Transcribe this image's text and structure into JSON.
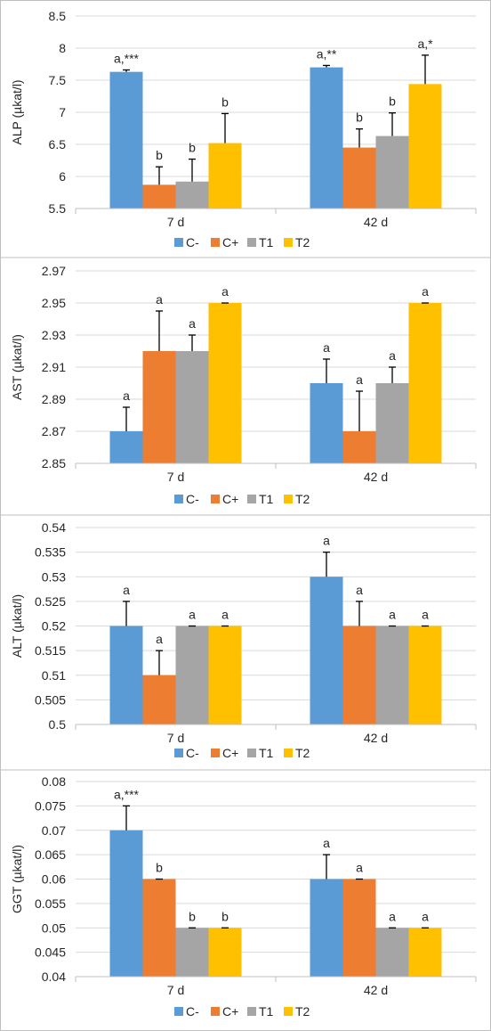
{
  "colors": {
    "C-": "#5B9BD5",
    "C+": "#ED7D31",
    "T1": "#A5A5A5",
    "T2": "#FFC000"
  },
  "chart_data": [
    {
      "type": "bar",
      "ylabel": "ALP (µkat/l)",
      "ylim": [
        5.5,
        8.5
      ],
      "yticks": [
        "5.5",
        "6",
        "6.5",
        "7",
        "7.5",
        "8",
        "8.5"
      ],
      "categories": [
        "7 d",
        "42 d"
      ],
      "legend_position": "bottom",
      "series": [
        {
          "name": "C-",
          "values": [
            7.63,
            7.7
          ],
          "errors": [
            0.03,
            0.03
          ],
          "labels": [
            "a,***",
            "a,**"
          ]
        },
        {
          "name": "C+",
          "values": [
            5.87,
            6.45
          ],
          "errors": [
            0.28,
            0.29
          ],
          "labels": [
            "b",
            "b"
          ]
        },
        {
          "name": "T1",
          "values": [
            5.92,
            6.63
          ],
          "errors": [
            0.35,
            0.36
          ],
          "labels": [
            "b",
            "b"
          ]
        },
        {
          "name": "T2",
          "values": [
            6.52,
            7.44
          ],
          "errors": [
            0.46,
            0.45
          ],
          "labels": [
            "b",
            "a,*"
          ]
        }
      ]
    },
    {
      "type": "bar",
      "ylabel": "AST (µkat/l)",
      "ylim": [
        2.85,
        2.97
      ],
      "yticks": [
        "2.85",
        "2.87",
        "2.89",
        "2.91",
        "2.93",
        "2.95",
        "2.97"
      ],
      "categories": [
        "7 d",
        "42 d"
      ],
      "legend_position": "bottom",
      "series": [
        {
          "name": "C-",
          "values": [
            2.87,
            2.9
          ],
          "errors": [
            0.015,
            0.015
          ],
          "labels": [
            "a",
            "a"
          ]
        },
        {
          "name": "C+",
          "values": [
            2.92,
            2.87
          ],
          "errors": [
            0.025,
            0.025
          ],
          "labels": [
            "a",
            "a"
          ]
        },
        {
          "name": "T1",
          "values": [
            2.92,
            2.9
          ],
          "errors": [
            0.01,
            0.01
          ],
          "labels": [
            "a",
            "a"
          ]
        },
        {
          "name": "T2",
          "values": [
            2.95,
            2.95
          ],
          "errors": [
            0,
            0
          ],
          "labels": [
            "a",
            "a"
          ]
        }
      ]
    },
    {
      "type": "bar",
      "ylabel": "ALT (µkat/l)",
      "ylim": [
        0.5,
        0.54
      ],
      "yticks": [
        "0.5",
        "0.505",
        "0.51",
        "0.515",
        "0.52",
        "0.525",
        "0.53",
        "0.535",
        "0.54"
      ],
      "categories": [
        "7 d",
        "42 d"
      ],
      "legend_position": "bottom",
      "series": [
        {
          "name": "C-",
          "values": [
            0.52,
            0.53
          ],
          "errors": [
            0.005,
            0.005
          ],
          "labels": [
            "a",
            "a"
          ]
        },
        {
          "name": "C+",
          "values": [
            0.51,
            0.52
          ],
          "errors": [
            0.005,
            0.005
          ],
          "labels": [
            "a",
            "a"
          ]
        },
        {
          "name": "T1",
          "values": [
            0.52,
            0.52
          ],
          "errors": [
            0,
            0
          ],
          "labels": [
            "a",
            "a"
          ]
        },
        {
          "name": "T2",
          "values": [
            0.52,
            0.52
          ],
          "errors": [
            0,
            0
          ],
          "labels": [
            "a",
            "a"
          ]
        }
      ]
    },
    {
      "type": "bar",
      "ylabel": "GGT (µkat/l)",
      "ylim": [
        0.04,
        0.08
      ],
      "yticks": [
        "0.04",
        "0.045",
        "0.05",
        "0.055",
        "0.06",
        "0.065",
        "0.07",
        "0.075",
        "0.08"
      ],
      "categories": [
        "7 d",
        "42 d"
      ],
      "legend_position": "bottom",
      "series": [
        {
          "name": "C-",
          "values": [
            0.07,
            0.06
          ],
          "errors": [
            0.005,
            0.005
          ],
          "labels": [
            "a,***",
            "a"
          ]
        },
        {
          "name": "C+",
          "values": [
            0.06,
            0.06
          ],
          "errors": [
            0,
            0
          ],
          "labels": [
            "b",
            "a"
          ]
        },
        {
          "name": "T1",
          "values": [
            0.05,
            0.05
          ],
          "errors": [
            0,
            0
          ],
          "labels": [
            "b",
            "a"
          ]
        },
        {
          "name": "T2",
          "values": [
            0.05,
            0.05
          ],
          "errors": [
            0,
            0
          ],
          "labels": [
            "b",
            "a"
          ]
        }
      ]
    }
  ]
}
